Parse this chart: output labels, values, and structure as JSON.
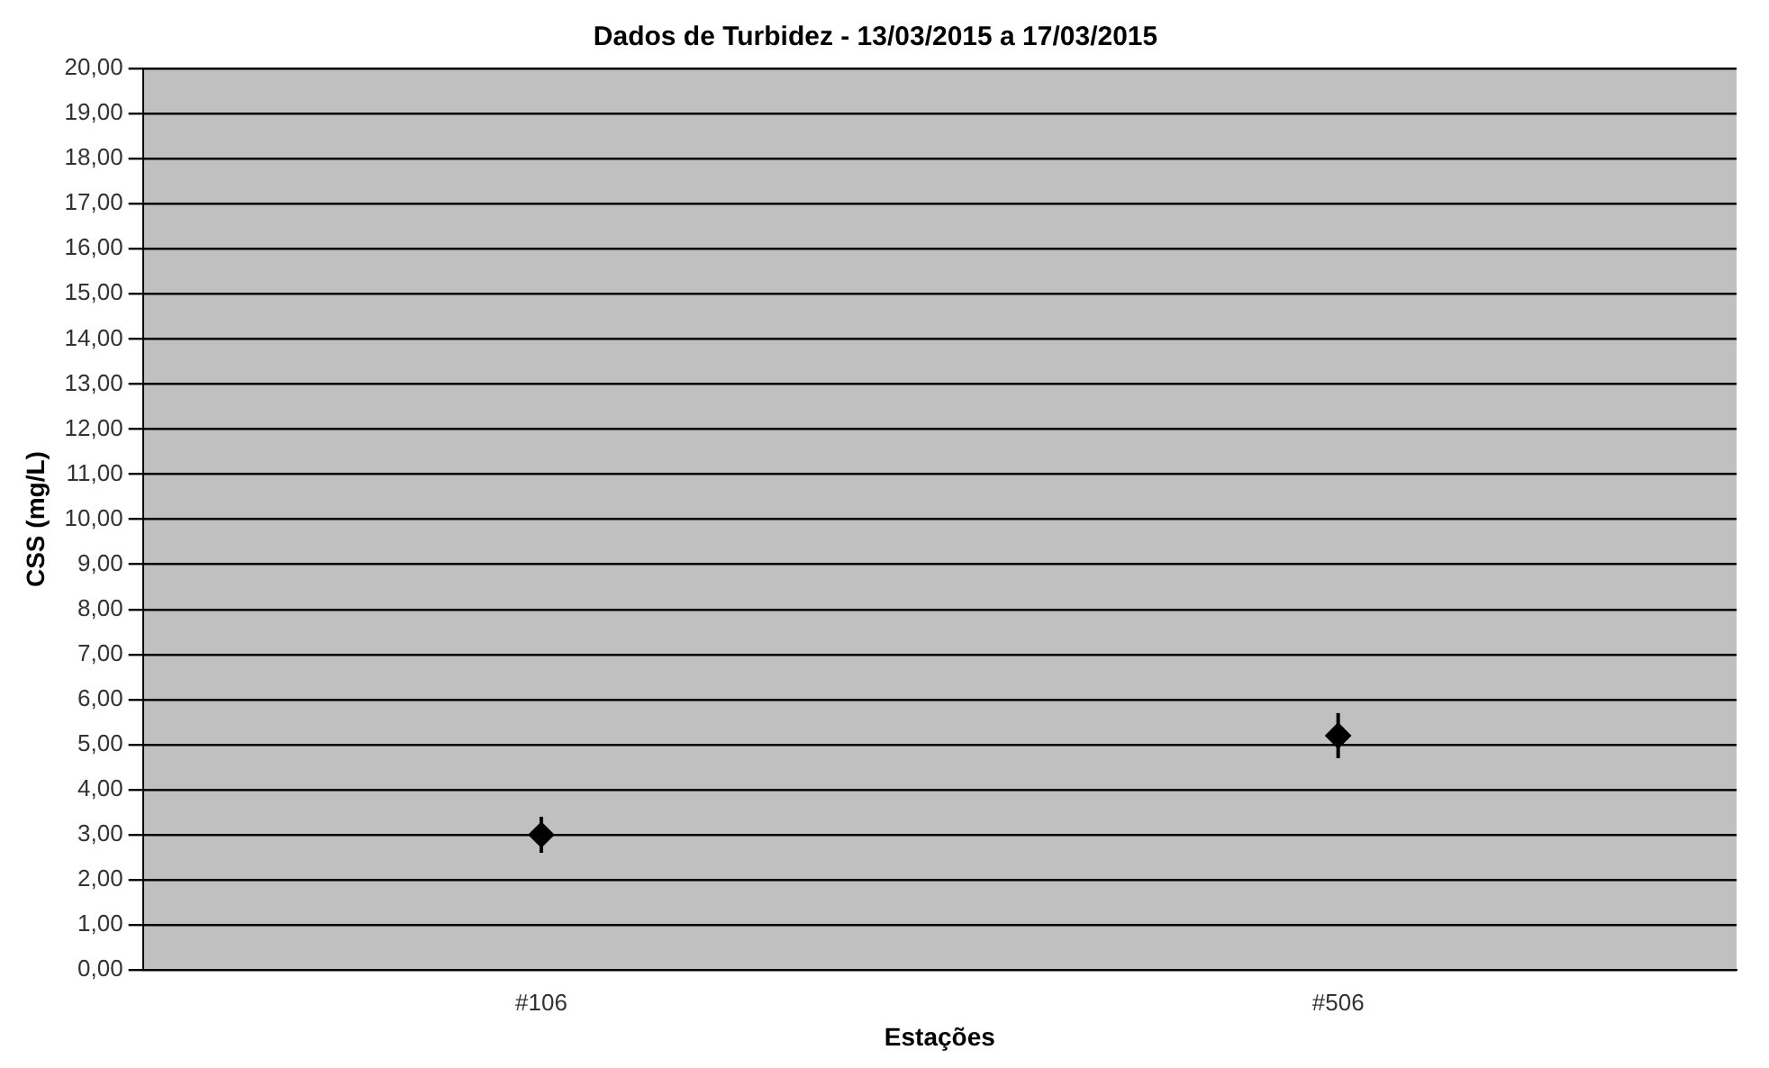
{
  "chart_data": {
    "type": "scatter",
    "title": "Dados de Turbidez - 13/03/2015 a 17/03/2015",
    "xlabel": "Estações",
    "ylabel": "CSS (mg/L)",
    "categories": [
      "#106",
      "#506"
    ],
    "series": [
      {
        "color": "#000000",
        "values": [
          3.0,
          5.2
        ],
        "errors": [
          0.4,
          0.5
        ]
      }
    ],
    "ylim": [
      0,
      20
    ],
    "yticks": [
      {
        "value": 0,
        "label": "0,00"
      },
      {
        "value": 1,
        "label": "1,00"
      },
      {
        "value": 2,
        "label": "2,00"
      },
      {
        "value": 3,
        "label": "3,00"
      },
      {
        "value": 4,
        "label": "4,00"
      },
      {
        "value": 5,
        "label": "5,00"
      },
      {
        "value": 6,
        "label": "6,00"
      },
      {
        "value": 7,
        "label": "7,00"
      },
      {
        "value": 8,
        "label": "8,00"
      },
      {
        "value": 9,
        "label": "9,00"
      },
      {
        "value": 10,
        "label": "10,00"
      },
      {
        "value": 11,
        "label": "11,00"
      },
      {
        "value": 12,
        "label": "12,00"
      },
      {
        "value": 13,
        "label": "13,00"
      },
      {
        "value": 14,
        "label": "14,00"
      },
      {
        "value": 15,
        "label": "15,00"
      },
      {
        "value": 16,
        "label": "16,00"
      },
      {
        "value": 17,
        "label": "17,00"
      },
      {
        "value": 18,
        "label": "18,00"
      },
      {
        "value": 19,
        "label": "19,00"
      },
      {
        "value": 20,
        "label": "20,00"
      }
    ],
    "grid": "y",
    "legend": false,
    "marker": "diamond"
  }
}
